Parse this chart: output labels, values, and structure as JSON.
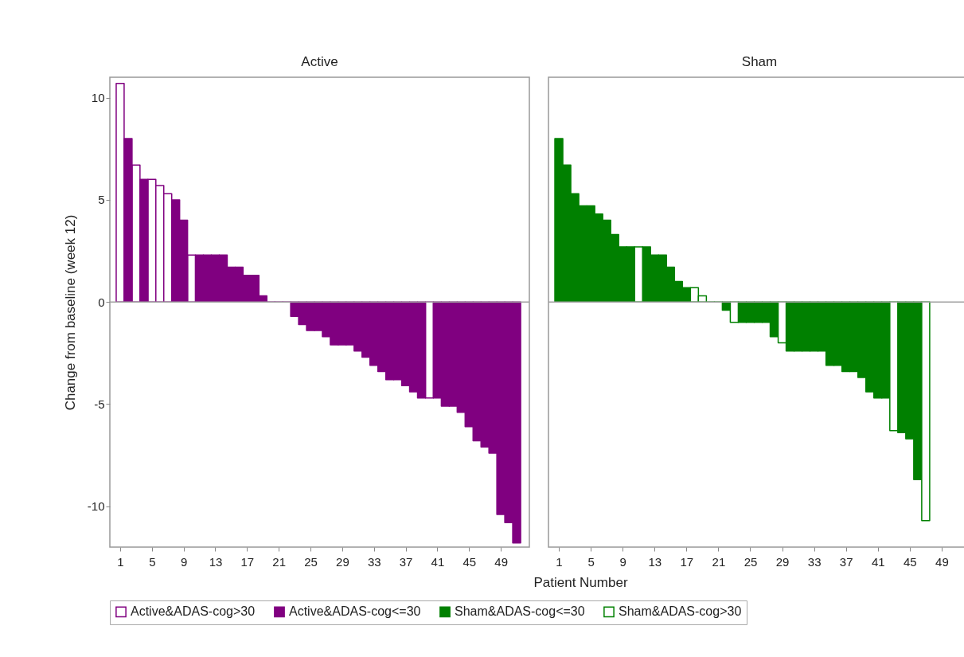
{
  "chart_data": [
    {
      "type": "bar",
      "title": "Active",
      "ylabel": "Change from baseline (week 12)",
      "x": [
        1,
        2,
        3,
        4,
        5,
        6,
        7,
        8,
        9,
        10,
        11,
        12,
        13,
        14,
        15,
        16,
        17,
        18,
        19,
        20,
        21,
        22,
        23,
        24,
        25,
        26,
        27,
        28,
        29,
        30,
        31,
        32,
        33,
        34,
        35,
        36,
        37,
        38,
        39,
        40,
        41,
        42,
        43,
        44,
        45,
        46,
        47,
        48,
        49,
        50,
        51
      ],
      "series": [
        {
          "name": "Active&ADAS-cog>30",
          "color": "#800080",
          "line_style": "solid",
          "values": [
            10.7,
            null,
            6.7,
            null,
            6.0,
            5.7,
            5.3,
            null,
            null,
            2.3,
            null,
            null,
            null,
            null,
            null,
            null,
            null,
            null,
            null,
            null,
            null,
            null,
            null,
            null,
            null,
            null,
            null,
            null,
            null,
            null,
            null,
            null,
            null,
            null,
            null,
            null,
            null,
            null,
            null,
            -4.7,
            null,
            null,
            null,
            null,
            null,
            null,
            null,
            null,
            null,
            null,
            null
          ]
        },
        {
          "name": "Active&ADAS-cog<=30",
          "color": "#800080",
          "values": [
            null,
            8.0,
            null,
            6.0,
            null,
            null,
            null,
            5.0,
            4.0,
            null,
            2.3,
            2.3,
            2.3,
            2.3,
            1.7,
            1.7,
            1.3,
            1.3,
            0.3,
            0,
            0,
            0,
            -0.7,
            -1.1,
            -1.4,
            -1.4,
            -1.7,
            -2.1,
            -2.1,
            -2.1,
            -2.4,
            -2.7,
            -3.1,
            -3.4,
            -3.8,
            -3.8,
            -4.1,
            -4.4,
            -4.7,
            null,
            -4.7,
            -5.1,
            -5.1,
            -5.4,
            -6.1,
            -6.8,
            -7.1,
            -7.4,
            -10.4,
            -10.8,
            -11.8
          ]
        }
      ],
      "xlim": [
        -0.3,
        52.6
      ],
      "ylim": [
        -12,
        11
      ],
      "xticks": [
        1,
        5,
        9,
        13,
        17,
        21,
        25,
        29,
        33,
        37,
        41,
        45,
        49
      ],
      "yticks": [
        -10,
        -5,
        0,
        5,
        10
      ],
      "ref_lines": [
        {
          "axis": "y",
          "value": 0,
          "color": "#a0a0a0"
        }
      ],
      "legend": "bottom"
    },
    {
      "type": "bar",
      "title": "Sham",
      "xlabel": "Patient Number",
      "x": [
        1,
        2,
        3,
        4,
        5,
        6,
        7,
        8,
        9,
        10,
        11,
        12,
        13,
        14,
        15,
        16,
        17,
        18,
        19,
        20,
        21,
        22,
        23,
        24,
        25,
        26,
        27,
        28,
        29,
        30,
        31,
        32,
        33,
        34,
        35,
        36,
        37,
        38,
        39,
        40,
        41,
        42,
        43,
        44,
        45,
        46,
        47
      ],
      "series": [
        {
          "name": "Sham&ADAS-cog<=30",
          "color": "#008000",
          "values": [
            8.0,
            6.7,
            5.3,
            4.7,
            4.7,
            4.3,
            4.0,
            3.3,
            2.7,
            2.7,
            null,
            2.7,
            2.3,
            2.3,
            1.7,
            1.0,
            0.7,
            null,
            null,
            0,
            0,
            -0.4,
            null,
            -1.0,
            -1.0,
            -1.0,
            -1.0,
            -1.7,
            null,
            -2.4,
            -2.4,
            -2.4,
            -2.4,
            -2.4,
            -3.1,
            -3.1,
            -3.4,
            -3.4,
            -3.7,
            -4.4,
            -4.7,
            -4.7,
            null,
            -6.4,
            -6.7,
            -8.7,
            null
          ]
        },
        {
          "name": "Sham&ADAS-cog>30",
          "color": "#008000",
          "line_style": "solid",
          "values": [
            null,
            null,
            null,
            null,
            null,
            null,
            null,
            null,
            null,
            null,
            2.7,
            null,
            null,
            null,
            null,
            null,
            null,
            0.7,
            0.3,
            null,
            null,
            null,
            -1.0,
            null,
            null,
            null,
            null,
            null,
            -2.0,
            null,
            null,
            null,
            null,
            null,
            null,
            null,
            null,
            null,
            null,
            null,
            null,
            null,
            -6.3,
            null,
            null,
            null,
            -10.7
          ]
        }
      ],
      "xlim": [
        -0.3,
        52.6
      ],
      "ylim": [
        -12,
        11
      ],
      "xticks": [
        1,
        5,
        9,
        13,
        17,
        21,
        25,
        29,
        33,
        37,
        41,
        45,
        49
      ],
      "yticks": [
        -10,
        -5,
        0,
        5,
        10
      ],
      "tick_labels": "x",
      "ref_lines": [
        {
          "axis": "y",
          "value": 0,
          "color": "#a0a0a0"
        }
      ],
      "legend": "bottom"
    }
  ]
}
